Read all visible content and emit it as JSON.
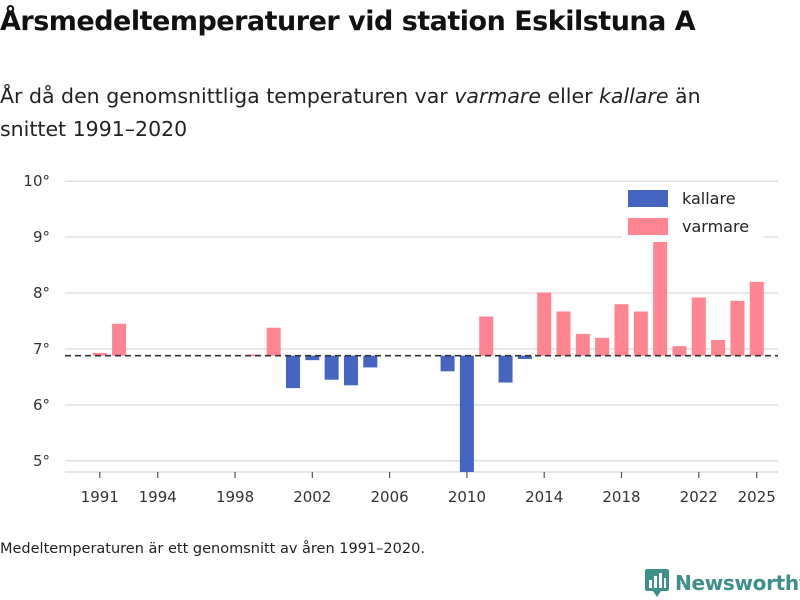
{
  "title": "Årsmedeltemperaturer vid station Eskilstuna A",
  "subtitle": {
    "prefix": "År då den genomsnittliga temperaturen var ",
    "warmer_word": "varmare",
    "middle": " eller ",
    "colder_word": "kallare",
    "suffix": " än snittet 1991–2020"
  },
  "footnote": "Medeltemperaturen är ett genomsnitt av åren 1991–2020.",
  "logo_text": "Newsworthy",
  "colors": {
    "kallare": "#4565c0",
    "varmare": "#ff8593",
    "grid": "#dddddd",
    "baseline": "#333333",
    "logo": "#3d8f8a"
  },
  "chart_data": {
    "type": "bar",
    "baseline": 6.88,
    "ylim": [
      4.8,
      10.2
    ],
    "xlim": [
      1989.2,
      2026.1
    ],
    "yticks": [
      5,
      6,
      7,
      8,
      9,
      10
    ],
    "ytick_labels": [
      "5°",
      "6°",
      "7°",
      "8°",
      "9°",
      "10°"
    ],
    "xticks": [
      1991,
      1994,
      1998,
      2002,
      2006,
      2010,
      2014,
      2018,
      2022,
      2025
    ],
    "xtick_labels": [
      "1991",
      "1994",
      "1998",
      "2002",
      "2006",
      "2010",
      "2014",
      "2018",
      "2022",
      "2025"
    ],
    "legend": [
      {
        "key": "kallare",
        "label": "kallare"
      },
      {
        "key": "varmare",
        "label": "varmare"
      }
    ],
    "legend_position": "top-right",
    "series": [
      {
        "name": "kallare",
        "points": [
          {
            "year": 2001,
            "value": 6.3
          },
          {
            "year": 2002,
            "value": 6.8
          },
          {
            "year": 2003,
            "value": 6.45
          },
          {
            "year": 2004,
            "value": 6.35
          },
          {
            "year": 2005,
            "value": 6.67
          },
          {
            "year": 2009,
            "value": 6.6
          },
          {
            "year": 2010,
            "value": 4.8
          },
          {
            "year": 2012,
            "value": 6.4
          },
          {
            "year": 2013,
            "value": 6.82
          }
        ]
      },
      {
        "name": "varmare",
        "points": [
          {
            "year": 1991,
            "value": 6.93
          },
          {
            "year": 1992,
            "value": 7.45
          },
          {
            "year": 1999,
            "value": 6.9
          },
          {
            "year": 2000,
            "value": 7.38
          },
          {
            "year": 2011,
            "value": 7.58
          },
          {
            "year": 2014,
            "value": 8.01
          },
          {
            "year": 2015,
            "value": 7.67
          },
          {
            "year": 2016,
            "value": 7.27
          },
          {
            "year": 2017,
            "value": 7.2
          },
          {
            "year": 2018,
            "value": 7.8
          },
          {
            "year": 2019,
            "value": 7.67
          },
          {
            "year": 2020,
            "value": 8.95
          },
          {
            "year": 2021,
            "value": 7.05
          },
          {
            "year": 2022,
            "value": 7.92
          },
          {
            "year": 2023,
            "value": 7.16
          },
          {
            "year": 2024,
            "value": 7.86
          },
          {
            "year": 2025,
            "value": 8.2
          }
        ]
      }
    ]
  }
}
